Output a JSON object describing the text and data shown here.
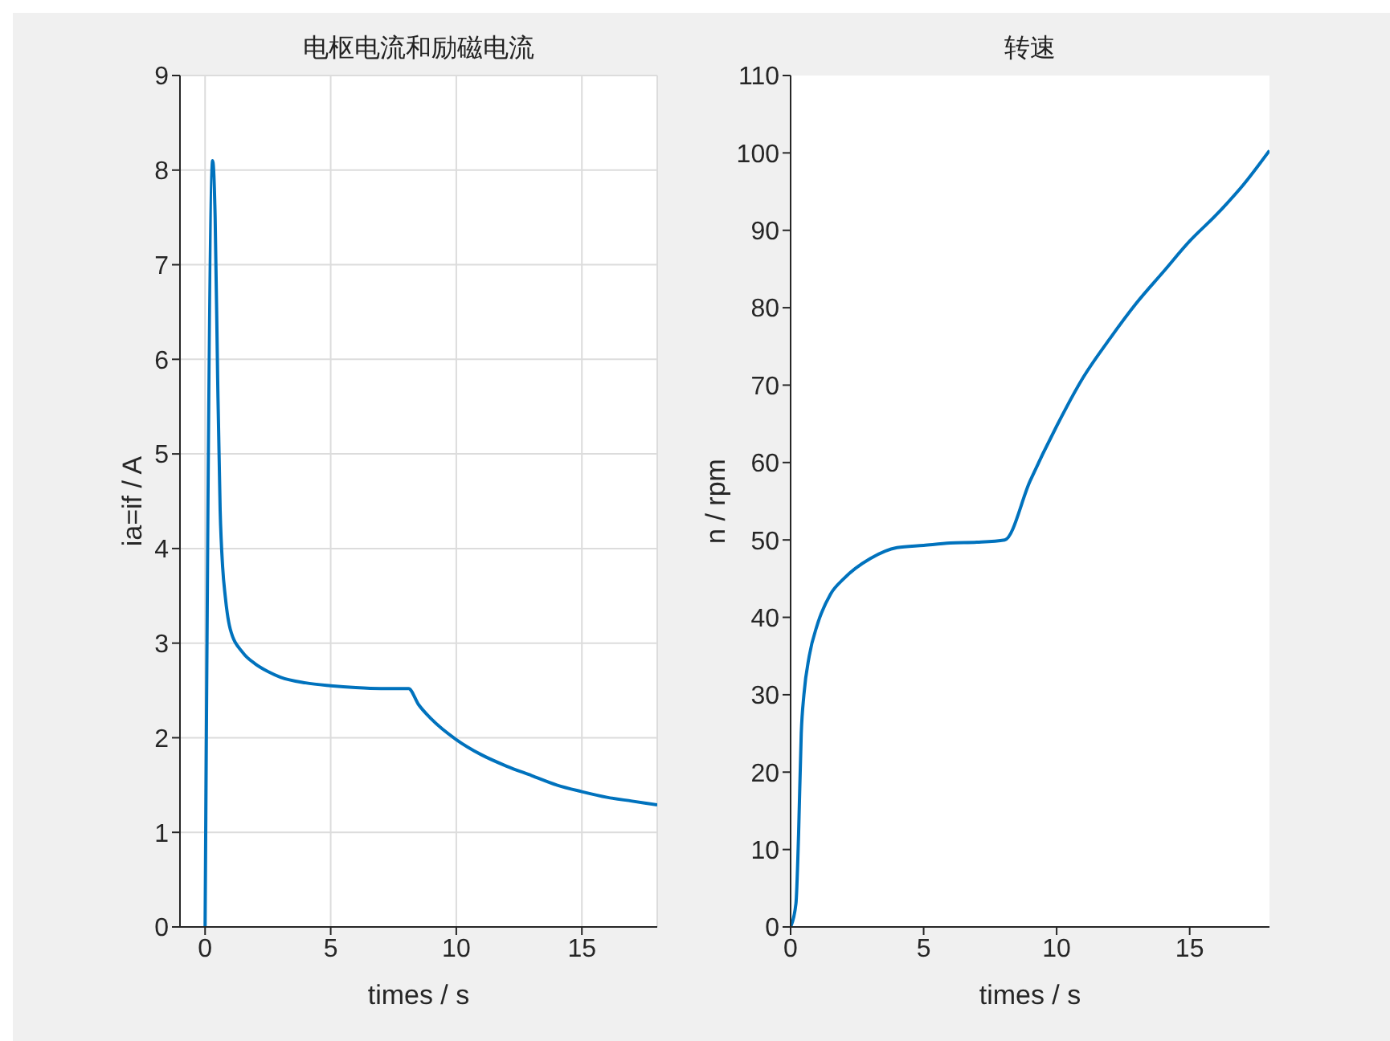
{
  "chart_data": [
    {
      "type": "line",
      "title": "电枢电流和励磁电流",
      "xlabel": "times / s",
      "ylabel": "ia=if / A",
      "xlim": [
        -1,
        18
      ],
      "xticks": [
        0,
        5,
        10,
        15
      ],
      "ylim": [
        0,
        9
      ],
      "yticks": [
        0,
        1,
        2,
        3,
        4,
        5,
        6,
        7,
        8,
        9
      ],
      "grid": true,
      "series": [
        {
          "color": "#0072bd",
          "x": [
            0,
            0.3,
            0.4,
            0.5,
            0.6,
            0.7,
            0.8,
            1,
            1.5,
            2,
            2.5,
            3,
            4,
            5,
            6,
            7,
            8.1,
            8.5,
            9,
            10,
            11,
            12,
            13,
            14,
            15,
            16,
            17,
            18
          ],
          "values": [
            0,
            8.1,
            7.5,
            5.8,
            4.4,
            3.8,
            3.5,
            3.15,
            2.9,
            2.78,
            2.7,
            2.64,
            2.58,
            2.55,
            2.53,
            2.52,
            2.52,
            2.35,
            2.2,
            1.98,
            1.82,
            1.7,
            1.6,
            1.5,
            1.43,
            1.37,
            1.33,
            1.29
          ]
        }
      ]
    },
    {
      "type": "line",
      "title": "转速",
      "xlabel": "times / s",
      "ylabel": "n / rpm",
      "xlim": [
        0,
        18
      ],
      "xticks": [
        0,
        5,
        10,
        15
      ],
      "ylim": [
        0,
        110
      ],
      "yticks": [
        0,
        10,
        20,
        30,
        40,
        50,
        60,
        70,
        80,
        90,
        100,
        110
      ],
      "series": [
        {
          "color": "#0072bd",
          "x": [
            0,
            0.2,
            0.3,
            0.4,
            0.5,
            0.7,
            1,
            1.5,
            2,
            3,
            4,
            5,
            6,
            7,
            8.05,
            9,
            10,
            11,
            12,
            13,
            14,
            15,
            16,
            17,
            18
          ],
          "values": [
            0,
            3,
            12,
            25,
            30,
            35,
            39,
            43,
            45,
            47.6,
            49,
            49.3,
            49.6,
            49.7,
            50,
            57.6,
            64.7,
            71,
            76,
            80.6,
            84.6,
            88.6,
            92,
            95.8,
            100.3
          ]
        }
      ]
    }
  ]
}
